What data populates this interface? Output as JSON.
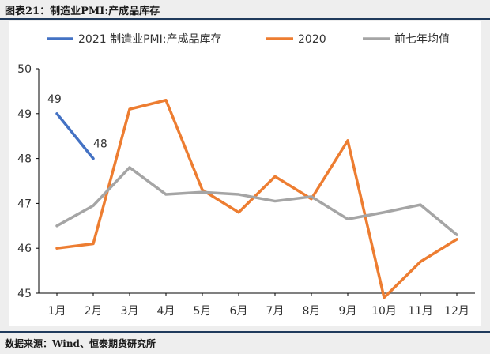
{
  "figure_title": "图表21：制造业PMI:产成品库存",
  "source": "数据来源：Wind、恒泰期货研究所",
  "chart_data": {
    "type": "line",
    "title": "",
    "xlabel": "",
    "ylabel": "",
    "categories": [
      "1月",
      "2月",
      "3月",
      "4月",
      "5月",
      "6月",
      "7月",
      "8月",
      "9月",
      "10月",
      "11月",
      "12月"
    ],
    "yticks": [
      "45",
      "46",
      "47",
      "48",
      "49",
      "50"
    ],
    "ylim": [
      45,
      50
    ],
    "grid": false,
    "legend_position": "top",
    "series": [
      {
        "name": "2021 制造业PMI:产成品库存",
        "color": "#4472c4",
        "values": [
          49,
          48,
          null,
          null,
          null,
          null,
          null,
          null,
          null,
          null,
          null,
          null
        ],
        "data_labels": [
          "49",
          "48"
        ]
      },
      {
        "name": "2020",
        "color": "#ed7d31",
        "values": [
          46.0,
          46.1,
          49.1,
          49.3,
          47.3,
          46.8,
          47.6,
          47.1,
          48.4,
          44.9,
          45.7,
          46.2
        ]
      },
      {
        "name": "前七年均值",
        "color": "#a5a5a5",
        "values": [
          46.5,
          46.95,
          47.8,
          47.2,
          47.25,
          47.2,
          47.05,
          47.15,
          46.65,
          46.8,
          46.97,
          46.3
        ]
      }
    ]
  }
}
